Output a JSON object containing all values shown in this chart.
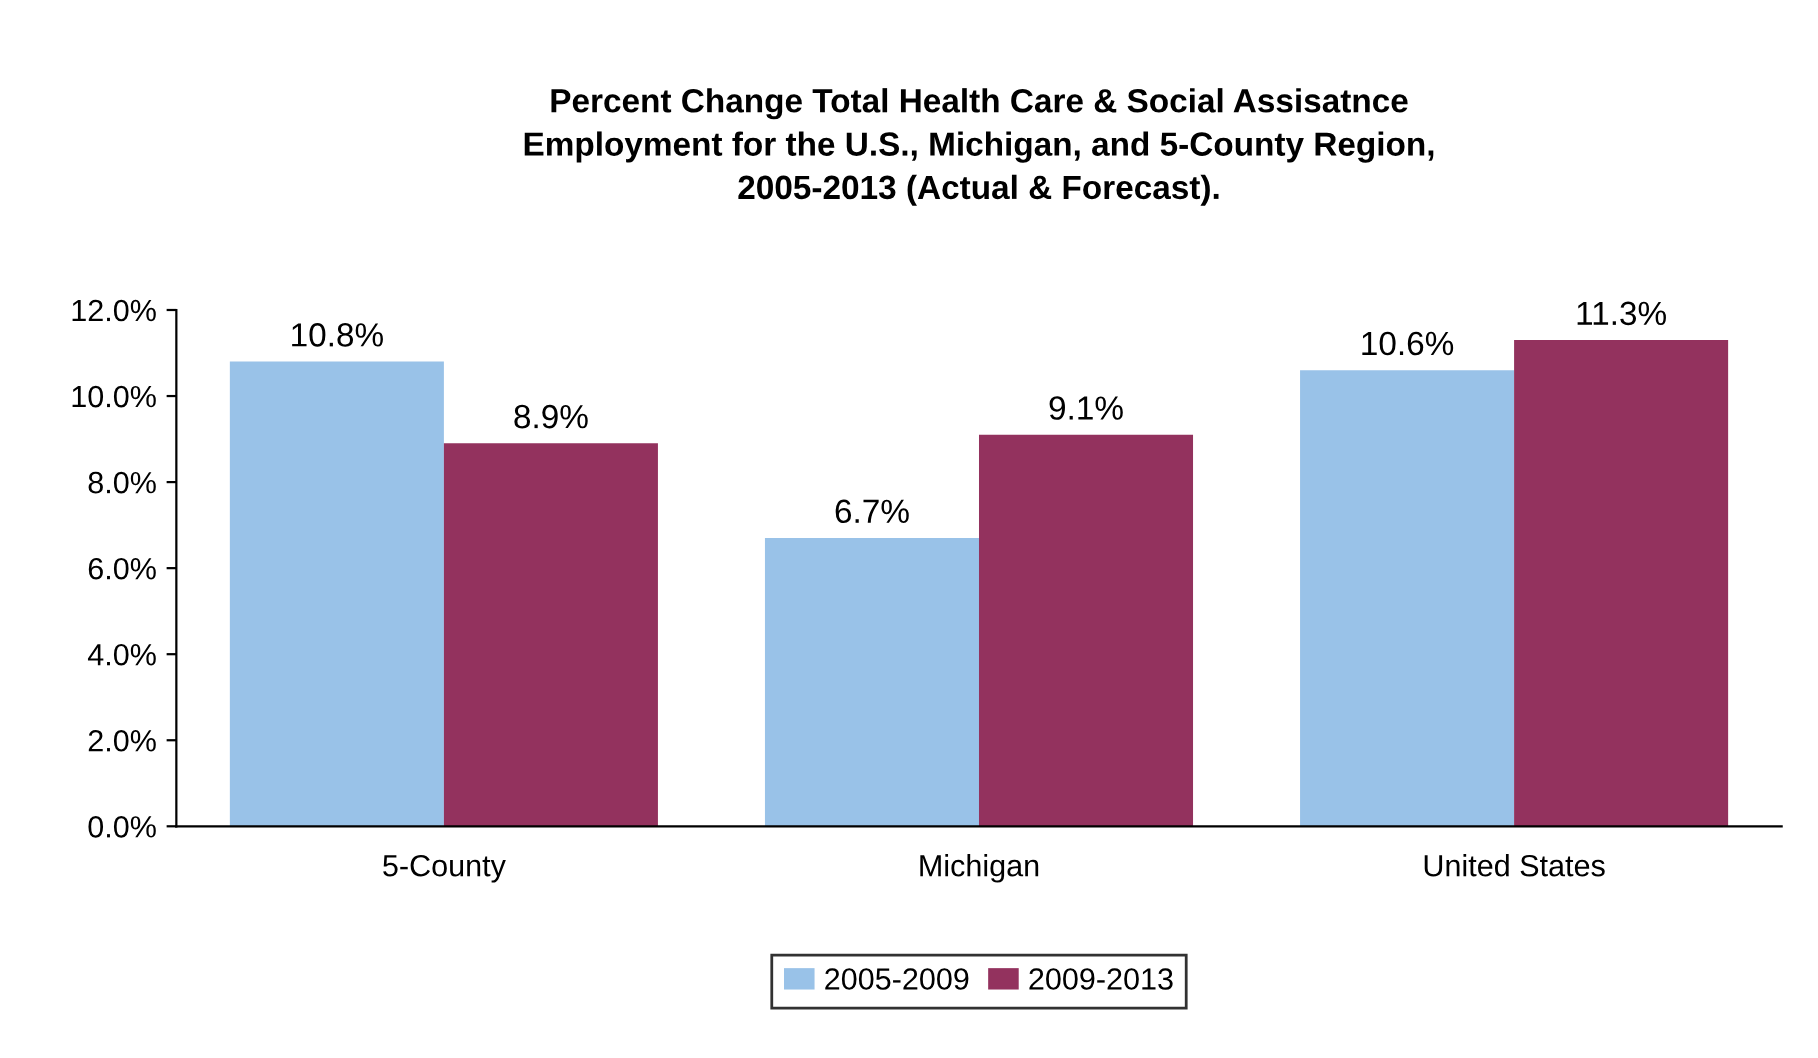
{
  "chart_data": {
    "type": "bar",
    "title": "Percent Change Total Health Care & Social Assisatnce\nEmployment for the U.S., Michigan, and 5-County Region,\n2005-2013 (Actual & Forecast).",
    "categories": [
      "5-County",
      "Michigan",
      "United States"
    ],
    "series": [
      {
        "name": "2005-2009",
        "color": "#99c2e8",
        "values": [
          10.8,
          6.7,
          10.6
        ],
        "value_labels": [
          "10.8%",
          "6.7%",
          "10.6%"
        ]
      },
      {
        "name": "2009-2013",
        "color": "#93325e",
        "values": [
          8.9,
          9.1,
          11.3
        ],
        "value_labels": [
          "8.9%",
          "9.1%",
          "11.3%"
        ]
      }
    ],
    "ylim": [
      0,
      12
    ],
    "yticks": [
      {
        "value": 0,
        "label": "0.0%"
      },
      {
        "value": 2,
        "label": "2.0%"
      },
      {
        "value": 4,
        "label": "4.0%"
      },
      {
        "value": 6,
        "label": "6.0%"
      },
      {
        "value": 8,
        "label": "8.0%"
      },
      {
        "value": 10,
        "label": "10.0%"
      },
      {
        "value": 12,
        "label": "12.0%"
      }
    ],
    "legend": "bottom"
  }
}
